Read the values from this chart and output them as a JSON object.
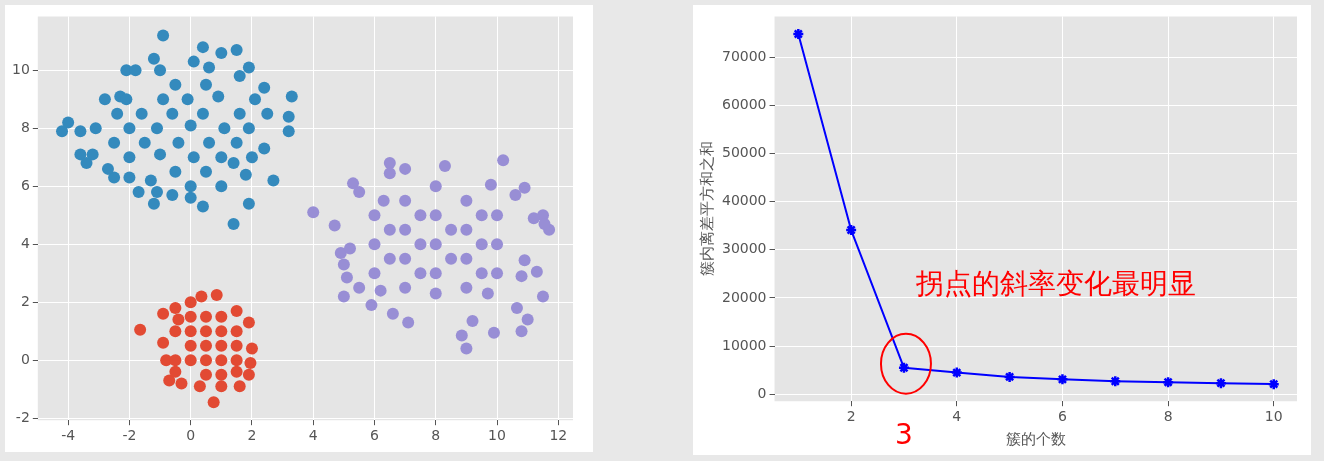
{
  "chart_data": [
    {
      "type": "scatter",
      "marker": "circle",
      "grid": true,
      "xlim": [
        -4.99,
        12.48
      ],
      "ylim": [
        -2.07,
        11.86
      ],
      "xticks": [
        -4,
        -2,
        0,
        2,
        4,
        6,
        8,
        10,
        12
      ],
      "yticks": [
        -2,
        0,
        2,
        4,
        6,
        8,
        10
      ],
      "series": [
        {
          "color": "#348abd",
          "x": [
            -4.2,
            -4.0,
            -3.6,
            -3.6,
            -3.4,
            -3.2,
            -3.1,
            -0.9,
            0.4,
            1.5,
            1.0,
            -1.2,
            2.4,
            3.3,
            3.2,
            3.2,
            2.7,
            1.9,
            1.4,
            0.4,
            -1.2,
            -0.6,
            -1.1,
            -2.5,
            -2.7,
            -2.8,
            -2.1,
            -1.8,
            0.1,
            1.6,
            1.9,
            2.5,
            2.4,
            1.8,
            0.0,
            -1.7,
            -2.3,
            -2.0,
            -1.3,
            -2.0,
            -2.0,
            -2.1,
            -1.0,
            -1.1,
            -0.9,
            0.1,
            0.0,
            -0.1,
            1.0,
            1.1,
            0.9,
            2.0,
            1.9,
            2.1,
            -1.5,
            -1.6,
            -0.5,
            -0.4,
            -0.6,
            -0.5,
            0.5,
            0.6,
            0.4,
            0.5,
            1.5,
            1.6,
            1.4,
            -2.5,
            -2.4,
            0.0,
            1.0,
            -1.0,
            0.6
          ],
          "values": [
            7.9,
            8.2,
            7.9,
            7.1,
            6.8,
            7.1,
            8.0,
            11.2,
            10.8,
            10.7,
            10.6,
            10.4,
            9.4,
            9.1,
            8.4,
            7.9,
            6.2,
            5.4,
            4.7,
            5.3,
            5.4,
            5.7,
            5.8,
            6.3,
            6.6,
            9.0,
            10.0,
            10.0,
            10.3,
            9.8,
            10.1,
            8.5,
            7.3,
            6.4,
            5.6,
            5.8,
            9.1,
            6.3,
            6.2,
            7.0,
            8.0,
            9.0,
            7.1,
            8.0,
            9.0,
            7.0,
            8.1,
            9.0,
            7.0,
            8.0,
            9.1,
            7.0,
            8.0,
            9.0,
            7.5,
            8.5,
            6.5,
            7.5,
            8.5,
            9.5,
            6.5,
            7.5,
            8.5,
            9.5,
            7.5,
            8.5,
            6.8,
            7.5,
            8.5,
            6.0,
            6.0,
            10.0,
            10.1
          ]
        },
        {
          "color": "#e24a33",
          "x": [
            -1.65,
            0.75,
            1.6,
            -0.3,
            -0.7,
            -0.9,
            0.35,
            0.85,
            1.9,
            2.0,
            1.9,
            1.0,
            0.3,
            -0.9,
            -0.8,
            -0.5,
            0.0,
            1.5,
            1.95,
            -0.5,
            -0.5,
            0.0,
            0.0,
            0.0,
            0.0,
            0.5,
            0.5,
            0.5,
            0.5,
            0.5,
            1.0,
            1.0,
            1.0,
            1.0,
            1.0,
            1.5,
            1.5,
            1.5,
            1.5,
            -0.5,
            -0.4
          ],
          "values": [
            1.05,
            -1.45,
            -0.9,
            -0.8,
            -0.7,
            1.6,
            2.2,
            2.25,
            1.3,
            0.4,
            -0.5,
            -0.9,
            -0.9,
            0.6,
            0.0,
            1.8,
            2.0,
            1.7,
            -0.1,
            0.0,
            1.0,
            0.0,
            0.5,
            1.0,
            1.5,
            -0.5,
            0.0,
            0.5,
            1.0,
            1.5,
            -0.5,
            0.0,
            0.5,
            1.0,
            1.5,
            0.0,
            0.5,
            1.0,
            -0.4,
            -0.4,
            1.4
          ]
        },
        {
          "color": "#988ed5",
          "x": [
            4.0,
            4.7,
            4.9,
            5.0,
            5.1,
            5.0,
            5.5,
            5.3,
            6.5,
            6.5,
            7.0,
            8.3,
            10.2,
            10.9,
            11.5,
            11.7,
            11.55,
            11.2,
            11.3,
            11.5,
            11.0,
            10.8,
            9.9,
            9.0,
            8.85,
            9.2,
            7.1,
            6.6,
            5.9,
            10.65,
            10.9,
            10.8,
            10.6,
            9.8,
            5.2,
            5.5,
            6.0,
            6.0,
            6.0,
            7.0,
            7.0,
            7.0,
            7.0,
            8.0,
            8.0,
            8.0,
            8.0,
            8.0,
            9.0,
            9.0,
            9.0,
            9.0,
            10.0,
            10.0,
            10.0,
            6.5,
            6.5,
            7.5,
            7.5,
            7.5,
            8.5,
            8.5,
            9.5,
            9.5,
            9.5,
            6.2,
            9.7,
            6.3
          ],
          "values": [
            5.1,
            4.65,
            3.7,
            3.3,
            2.85,
            2.2,
            2.5,
            6.1,
            6.8,
            6.45,
            6.6,
            6.7,
            6.9,
            5.95,
            5.0,
            4.5,
            4.7,
            4.9,
            3.05,
            2.2,
            1.4,
            1.0,
            0.95,
            0.4,
            0.85,
            1.35,
            1.3,
            1.6,
            1.9,
            1.8,
            3.45,
            2.9,
            5.7,
            6.05,
            3.85,
            5.8,
            3.0,
            4.0,
            5.0,
            2.5,
            3.5,
            4.5,
            5.5,
            2.3,
            3.0,
            4.0,
            5.0,
            6.0,
            2.5,
            3.5,
            4.5,
            5.5,
            3.0,
            4.0,
            5.0,
            3.5,
            4.5,
            3.0,
            4.0,
            5.0,
            3.5,
            4.5,
            3.0,
            4.0,
            5.0,
            2.4,
            2.3,
            5.5
          ]
        }
      ]
    },
    {
      "type": "line",
      "marker": "cross",
      "line_style": "solid",
      "grid": true,
      "xlabel": "簇的个数",
      "ylabel": "簇内离差平方和之和",
      "xlim": [
        0.55,
        10.44
      ],
      "ylim": [
        -1440,
        78450
      ],
      "xticks": [
        2,
        4,
        6,
        8,
        10
      ],
      "yticks": [
        0,
        10000,
        20000,
        30000,
        40000,
        50000,
        60000,
        70000
      ],
      "series": [
        {
          "color": "#0000ff",
          "x": [
            1,
            2,
            3,
            4,
            5,
            6,
            7,
            8,
            9,
            10
          ],
          "values": [
            74800,
            34100,
            5500,
            4500,
            3600,
            3100,
            2700,
            2500,
            2300,
            2100
          ]
        }
      ],
      "annotations": [
        {
          "text": "拐点的斜率变化最明显",
          "x": 3,
          "y": 5500
        },
        "3"
      ]
    }
  ]
}
